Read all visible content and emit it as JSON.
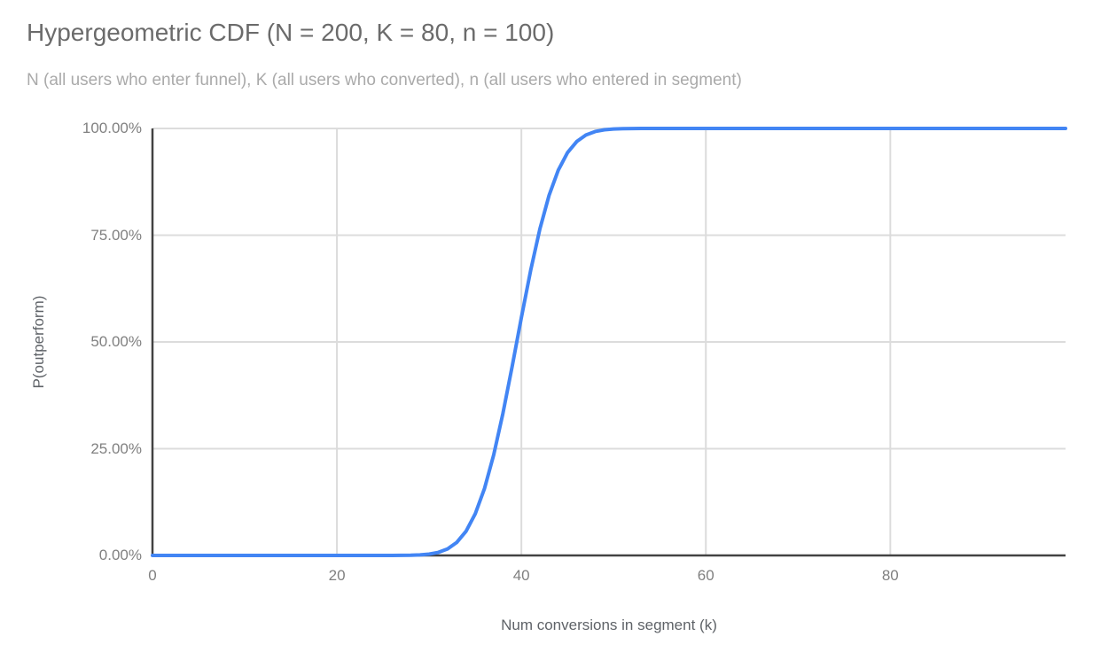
{
  "chart": {
    "title": "Hypergeometric CDF (N = 200, K = 80, n = 100)",
    "subtitle": "N (all users who enter funnel), K (all users who converted), n (all users who entered in segment)",
    "x_axis_title": "Num conversions in segment (k)",
    "y_axis_title": "P(outperform)"
  },
  "colors": {
    "line": "#4285f4",
    "grid": "#dcdcdc",
    "axis": "#424242",
    "tick_label": "#808080",
    "axis_title": "#5f6368",
    "title": "#6b6b6b",
    "subtitle": "#aaaaaa",
    "background": "#ffffff"
  },
  "chart_data": {
    "type": "line",
    "title": "Hypergeometric CDF (N = 200, K = 80, n = 100)",
    "subtitle": "N (all users who enter funnel), K (all users who converted), n (all users who entered in segment)",
    "xlabel": "Num conversions in segment (k)",
    "ylabel": "P(outperform)",
    "x_min": 0,
    "x_max": 99,
    "x_step": 1,
    "ylim": [
      0,
      1
    ],
    "grid": true,
    "legend": "none",
    "x_tick_values": [
      0,
      20,
      40,
      60,
      80
    ],
    "x_tick_labels": [
      "0",
      "20",
      "40",
      "60",
      "80"
    ],
    "y_tick_values": [
      0,
      0.25,
      0.5,
      0.75,
      1
    ],
    "y_tick_labels": [
      "0.00%",
      "25.00%",
      "50.00%",
      "75.00%",
      "100.00%"
    ],
    "series": [
      {
        "name": "P(outperform)",
        "color": "#4285f4",
        "values": [
          0,
          0,
          0,
          0,
          0,
          0,
          0,
          0,
          0,
          0,
          0,
          0,
          0,
          0,
          0,
          0,
          0,
          0,
          0,
          0,
          0,
          0,
          0,
          0,
          0,
          2e-05,
          5e-05,
          0.00016,
          0.00046,
          0.00125,
          0.0031,
          0.0072,
          0.0154,
          0.0307,
          0.0567,
          0.0977,
          0.1568,
          0.2358,
          0.3329,
          0.4428,
          0.5572,
          0.6671,
          0.7642,
          0.8432,
          0.9023,
          0.9433,
          0.9693,
          0.9846,
          0.9928,
          0.9969,
          0.9987,
          0.9995,
          0.9998,
          0.9999,
          1,
          1,
          1,
          1,
          1,
          1,
          1,
          1,
          1,
          1,
          1,
          1,
          1,
          1,
          1,
          1,
          1,
          1,
          1,
          1,
          1,
          1,
          1,
          1,
          1,
          1,
          1,
          1,
          1,
          1,
          1,
          1,
          1,
          1,
          1,
          1,
          1,
          1,
          1,
          1,
          1,
          1,
          1,
          1,
          1,
          1
        ]
      }
    ]
  }
}
